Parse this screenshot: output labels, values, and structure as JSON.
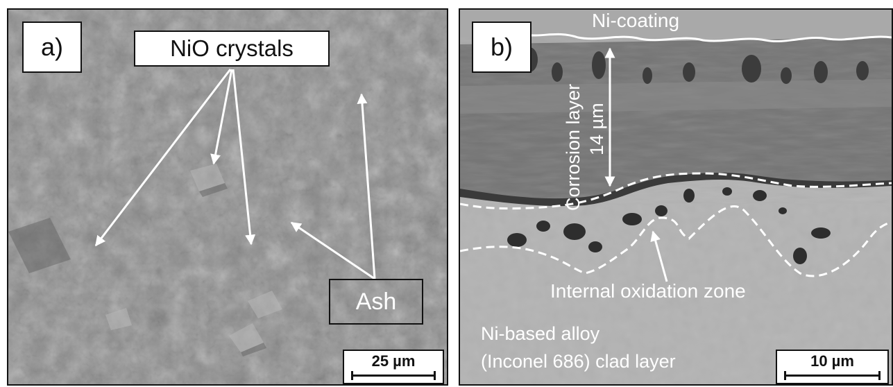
{
  "panel_a": {
    "panel_label": "a)",
    "callout_crystals": "NiO crystals",
    "callout_ash": "Ash",
    "scale_bar": "25 µm"
  },
  "panel_b": {
    "panel_label": "b)",
    "coating_label": "Ni-coating",
    "corrosion_label": "Corrosion layer",
    "thickness_label": "14 µm",
    "zone_label": "Internal oxidation zone",
    "alloy_line1": "Ni-based alloy",
    "alloy_line2": "(Inconel 686) clad layer",
    "scale_bar": "10 µm"
  },
  "colors": {
    "surface_gray": "#8d8d8d",
    "coating_gray": "#a9a9a9",
    "corrosion_gray": "#747474",
    "alloy_gray": "#b3b3b3",
    "annotation": "#ffffff"
  }
}
